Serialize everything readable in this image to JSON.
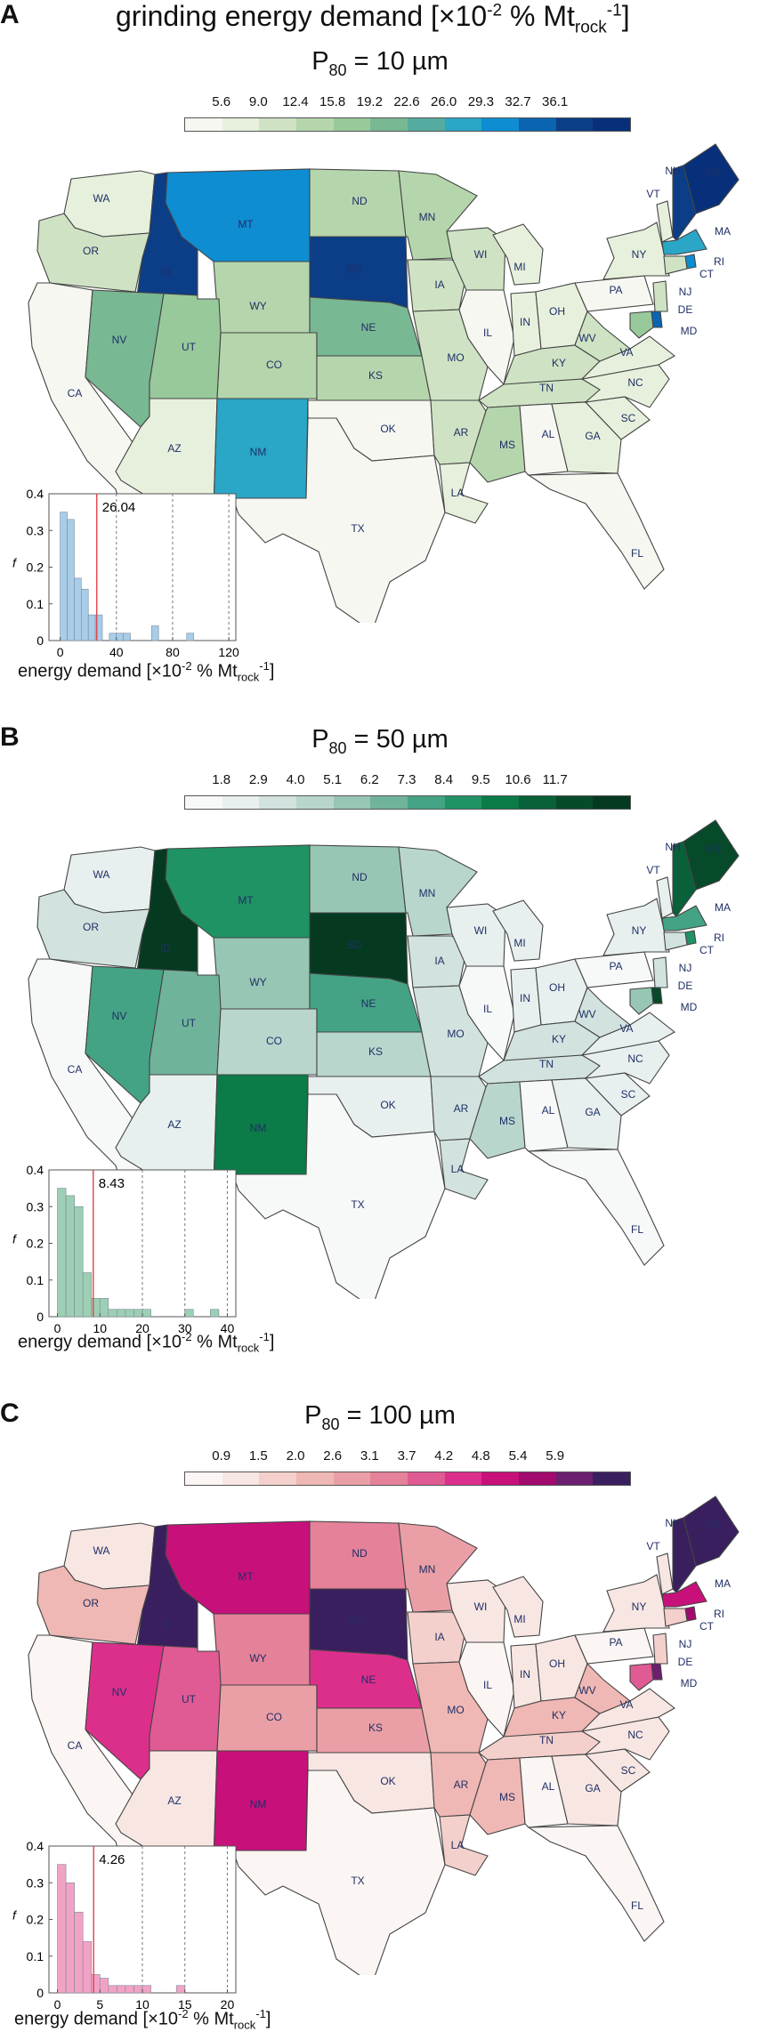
{
  "figure_title": {
    "prefix": "grinding energy demand [×10",
    "exp": "-2",
    "mid": " % Mt",
    "sub": "rock",
    "sup": "-1",
    "suffix": "]"
  },
  "panels": [
    {
      "letter": "A",
      "title_main": "P",
      "title_sub": "80",
      "title_rest": " = 10 µm",
      "ticks": [
        "5.6",
        "9.0",
        "12.4",
        "15.8",
        "19.2",
        "22.6",
        "26.0",
        "29.3",
        "32.7",
        "36.1"
      ],
      "palette": [
        "#f7f7f2",
        "#e7f0dc",
        "#cfe3c4",
        "#b5d6ad",
        "#98c99b",
        "#78b893",
        "#55aba0",
        "#2aa6c6",
        "#0e8dd2",
        "#0a64b0",
        "#0c3d87",
        "#08307a"
      ],
      "states": {
        "WA": 1,
        "OR": 2,
        "CA": 0,
        "ID": 10,
        "MT": 8,
        "WY": 3,
        "NV": 5,
        "UT": 4,
        "AZ": 1,
        "NM": 7,
        "CO": 3,
        "ND": 3,
        "SD": 10,
        "NE": 5,
        "KS": 3,
        "OK": 0,
        "TX": 0,
        "MN": 3,
        "IA": 2,
        "MO": 2,
        "AR": 2,
        "LA": 1,
        "WI": 2,
        "IL": 0,
        "MI": 1,
        "IN": 1,
        "OH": 1,
        "KY": 2,
        "TN": 2,
        "MS": 3,
        "AL": 0,
        "GA": 1,
        "FL": 0,
        "SC": 1,
        "NC": 1,
        "VA": 1,
        "WV": 2,
        "PA": 0,
        "NY": 1,
        "VT": 1,
        "NH": 10,
        "ME": 11,
        "MA": 7,
        "RI": 8,
        "CT": 2,
        "NJ": 2,
        "DE": 9,
        "MD": 4
      },
      "histogram": {
        "bins": [
          0,
          5,
          10,
          15,
          20,
          25,
          30,
          35,
          40,
          45,
          50,
          55,
          60,
          65,
          70,
          75,
          80,
          85,
          90,
          95,
          100
        ],
        "f": [
          0.35,
          0.33,
          0.17,
          0.14,
          0.07,
          0.07,
          0,
          0.02,
          0.02,
          0.02,
          0,
          0,
          0,
          0.04,
          0,
          0,
          0,
          0,
          0.02,
          0
        ],
        "median": 26.04,
        "median_label": "26.04",
        "xlim": [
          -8,
          125
        ],
        "ylim": [
          0,
          0.4
        ],
        "xticks": [
          "0",
          "40",
          "80",
          "120"
        ],
        "yticks": [
          "0",
          "0.1",
          "0.2",
          "0.3",
          "0.4"
        ],
        "ylabel": "f",
        "color": "#a8cde8",
        "dashed_x": [
          40,
          80,
          120
        ]
      }
    },
    {
      "letter": "B",
      "title_main": "P",
      "title_sub": "80",
      "title_rest": " = 50 µm",
      "ticks": [
        "1.8",
        "2.9",
        "4.0",
        "5.1",
        "6.2",
        "7.3",
        "8.4",
        "9.5",
        "10.6",
        "11.7"
      ],
      "palette": [
        "#f7f9f8",
        "#e8f0ef",
        "#d2e3df",
        "#b9d6cd",
        "#98c6b4",
        "#70b39b",
        "#45a385",
        "#1f9364",
        "#0b7b48",
        "#086138",
        "#074a2a",
        "#053a21"
      ],
      "states": {
        "WA": 1,
        "OR": 2,
        "CA": 0,
        "ID": 11,
        "MT": 7,
        "WY": 4,
        "NV": 6,
        "UT": 5,
        "AZ": 1,
        "NM": 8,
        "CO": 3,
        "ND": 4,
        "SD": 11,
        "NE": 6,
        "KS": 3,
        "OK": 1,
        "TX": 0,
        "MN": 3,
        "IA": 2,
        "MO": 2,
        "AR": 2,
        "LA": 2,
        "WI": 1,
        "IL": 0,
        "MI": 1,
        "IN": 1,
        "OH": 1,
        "KY": 2,
        "TN": 2,
        "MS": 3,
        "AL": 0,
        "GA": 1,
        "FL": 0,
        "SC": 1,
        "NC": 1,
        "VA": 1,
        "WV": 2,
        "PA": 0,
        "NY": 1,
        "VT": 1,
        "NH": 9,
        "ME": 10,
        "MA": 6,
        "RI": 7,
        "CT": 2,
        "NJ": 2,
        "DE": 10,
        "MD": 4
      },
      "histogram": {
        "bins": [
          0,
          2,
          4,
          6,
          8,
          10,
          12,
          14,
          16,
          18,
          20,
          22,
          24,
          26,
          28,
          30,
          32,
          34,
          36,
          38,
          40
        ],
        "f": [
          0.35,
          0.33,
          0.3,
          0.12,
          0.05,
          0.05,
          0.02,
          0.02,
          0.02,
          0.02,
          0.02,
          0,
          0,
          0,
          0,
          0.02,
          0,
          0,
          0.02,
          0
        ],
        "median": 8.43,
        "median_label": "8.43",
        "xlim": [
          -2,
          42
        ],
        "ylim": [
          0,
          0.4
        ],
        "xticks": [
          "0",
          "10",
          "20",
          "30",
          "40"
        ],
        "yticks": [
          "0",
          "0.1",
          "0.2",
          "0.3",
          "0.4"
        ],
        "ylabel": "f",
        "color": "#9dcfb4",
        "dashed_x": [
          20,
          30,
          40
        ]
      }
    },
    {
      "letter": "C",
      "title_main": "P",
      "title_sub": "80",
      "title_rest": " = 100 µm",
      "ticks": [
        "0.9",
        "1.5",
        "2.0",
        "2.6",
        "3.1",
        "3.7",
        "4.2",
        "4.8",
        "5.4",
        "5.9"
      ],
      "palette": [
        "#fbf6f4",
        "#f8e6e3",
        "#f4d0cc",
        "#efb8b5",
        "#ea9fa6",
        "#e58199",
        "#e05a93",
        "#dc2f8c",
        "#c8107b",
        "#a20a6e",
        "#6b1f6e",
        "#3a1f5e"
      ],
      "states": {
        "WA": 1,
        "OR": 3,
        "CA": 0,
        "ID": 11,
        "MT": 8,
        "WY": 5,
        "NV": 7,
        "UT": 6,
        "AZ": 1,
        "NM": 8,
        "CO": 4,
        "ND": 5,
        "SD": 11,
        "NE": 7,
        "KS": 4,
        "OK": 1,
        "TX": 0,
        "MN": 4,
        "IA": 2,
        "MO": 3,
        "AR": 3,
        "LA": 2,
        "WI": 1,
        "IL": 0,
        "MI": 1,
        "IN": 1,
        "OH": 1,
        "KY": 3,
        "TN": 2,
        "MS": 3,
        "AL": 0,
        "GA": 1,
        "FL": 0,
        "SC": 1,
        "NC": 1,
        "VA": 1,
        "WV": 3,
        "PA": 0,
        "NY": 1,
        "VT": 1,
        "NH": 11,
        "ME": 11,
        "MA": 8,
        "RI": 9,
        "CT": 2,
        "NJ": 2,
        "DE": 10,
        "MD": 6
      },
      "histogram": {
        "bins": [
          0,
          1,
          2,
          3,
          4,
          5,
          6,
          7,
          8,
          9,
          10,
          11,
          12,
          13,
          14,
          15,
          16,
          17,
          18,
          19,
          20
        ],
        "f": [
          0.35,
          0.3,
          0.22,
          0.14,
          0.05,
          0.04,
          0.02,
          0.02,
          0.02,
          0.02,
          0.02,
          0,
          0,
          0,
          0.02,
          0,
          0,
          0,
          0,
          0
        ],
        "median": 4.26,
        "median_label": "4.26",
        "xlim": [
          -1,
          21
        ],
        "ylim": [
          0,
          0.4
        ],
        "xticks": [
          "0",
          "5",
          "10",
          "15",
          "20"
        ],
        "yticks": [
          "0",
          "0.1",
          "0.2",
          "0.3",
          "0.4"
        ],
        "ylabel": "f",
        "color": "#f2a3c5",
        "dashed_x": [
          10,
          15,
          20
        ]
      }
    }
  ],
  "hist_xlabel": {
    "prefix": "energy demand [×10",
    "exp": "-2",
    "mid": " % Mt",
    "sub": "rock",
    "sup": "-1",
    "suffix": "]"
  },
  "state_names": [
    "WA",
    "OR",
    "CA",
    "ID",
    "MT",
    "WY",
    "NV",
    "UT",
    "AZ",
    "NM",
    "CO",
    "ND",
    "SD",
    "NE",
    "KS",
    "OK",
    "TX",
    "MN",
    "IA",
    "MO",
    "AR",
    "LA",
    "WI",
    "IL",
    "MI",
    "IN",
    "OH",
    "KY",
    "TN",
    "MS",
    "AL",
    "GA",
    "FL",
    "SC",
    "NC",
    "VA",
    "WV",
    "PA",
    "NY",
    "VT",
    "NH",
    "ME",
    "MA",
    "RI",
    "CT",
    "NJ",
    "DE",
    "MD"
  ]
}
